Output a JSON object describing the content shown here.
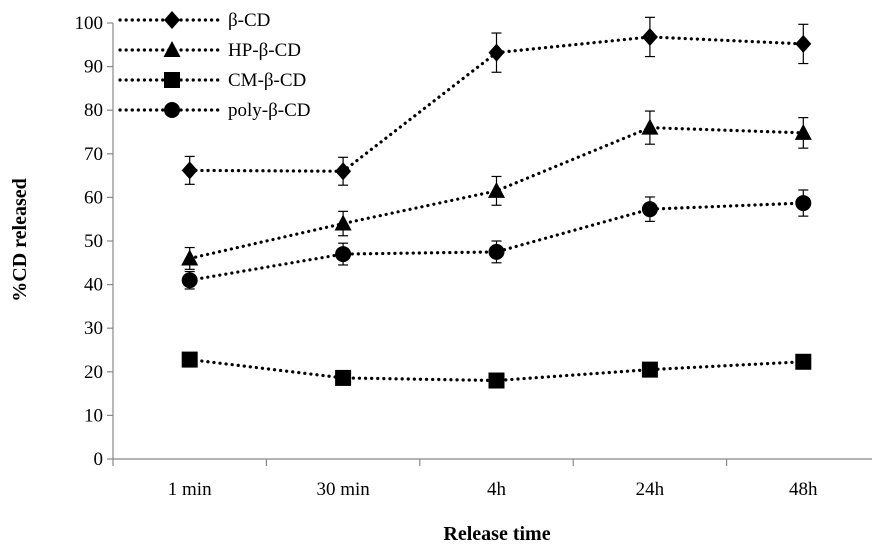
{
  "chart_data": {
    "type": "line",
    "categories": [
      "1 min",
      "30 min",
      "4h",
      "24h",
      "48h"
    ],
    "xlabel": "Release time",
    "ylabel": "%CD released",
    "ylim": [
      0,
      100
    ],
    "yticks": [
      0,
      10,
      20,
      30,
      40,
      50,
      60,
      70,
      80,
      90,
      100
    ],
    "grid": false,
    "legend_position": "top-left",
    "line_style": "dotted",
    "color": "#000000",
    "series": [
      {
        "name": "β-CD",
        "marker": "diamond",
        "values": [
          66.2,
          66.0,
          93.2,
          96.8,
          95.2
        ],
        "errors": [
          3.2,
          3.2,
          4.5,
          4.5,
          4.5
        ]
      },
      {
        "name": "HP-β-CD",
        "marker": "triangle",
        "values": [
          46.0,
          54.0,
          61.5,
          76.0,
          74.8
        ],
        "errors": [
          2.5,
          2.8,
          3.3,
          3.8,
          3.5
        ]
      },
      {
        "name": "CM-β-CD",
        "marker": "square",
        "values": [
          22.8,
          18.6,
          18.0,
          20.5,
          22.3
        ],
        "errors": [
          0,
          0,
          0,
          0,
          0
        ]
      },
      {
        "name": "poly-β-CD",
        "marker": "circle",
        "values": [
          41.0,
          47.0,
          47.5,
          57.3,
          58.7
        ],
        "errors": [
          2.0,
          2.5,
          2.5,
          2.8,
          3.0
        ]
      }
    ]
  }
}
